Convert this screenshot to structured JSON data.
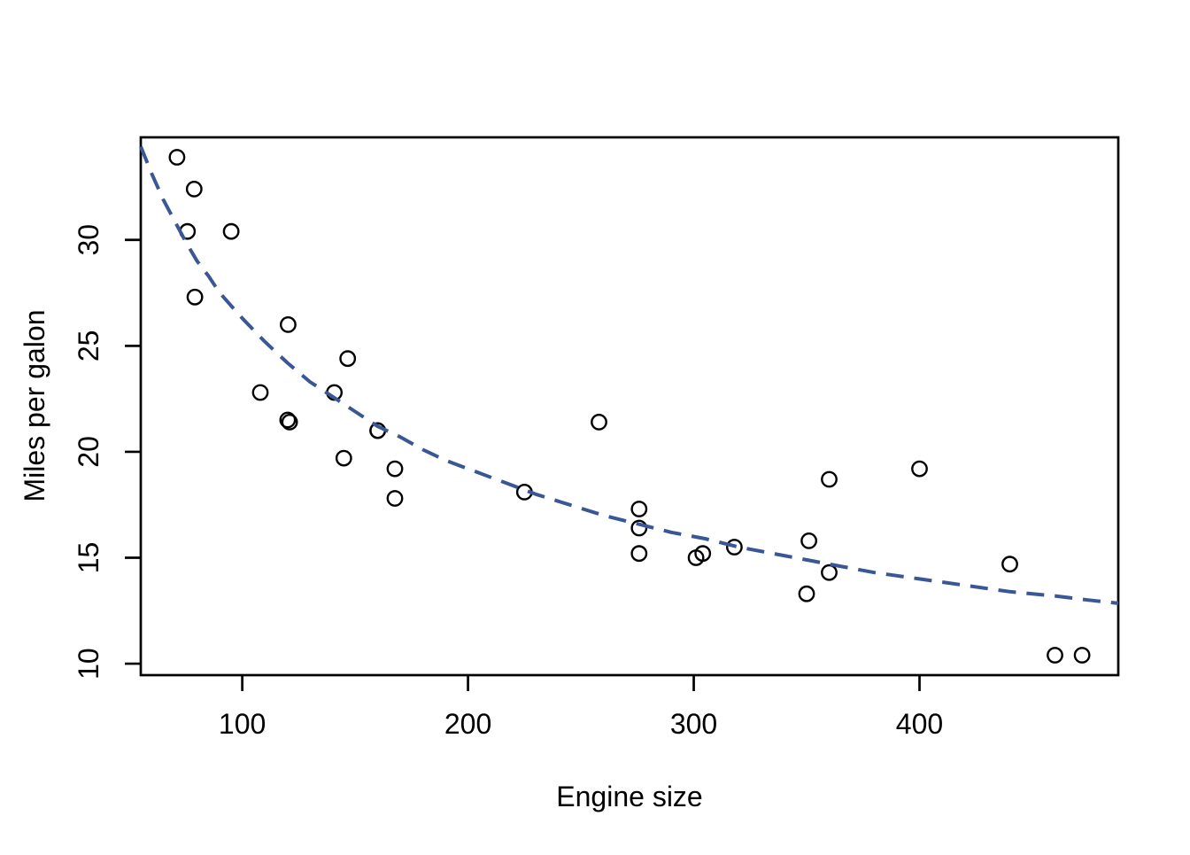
{
  "figure": {
    "background": "#ffffff"
  },
  "chart_data": {
    "type": "scatter",
    "title": "",
    "xlabel": "Engine size",
    "ylabel": "Miles per galon",
    "x_ticks": [
      100,
      200,
      300,
      400
    ],
    "y_ticks": [
      10,
      15,
      20,
      25,
      30
    ],
    "xlim": [
      55.05,
      488.05
    ],
    "ylim": [
      9.46,
      34.84
    ],
    "grid": false,
    "legend": "none",
    "point_style": {
      "shape": "open-circle",
      "color": "#000000",
      "radius": 8.2,
      "stroke_width": 2.4
    },
    "points": [
      [
        160,
        21.0
      ],
      [
        160,
        21.0
      ],
      [
        108,
        22.8
      ],
      [
        258,
        21.4
      ],
      [
        360,
        18.7
      ],
      [
        225,
        18.1
      ],
      [
        360,
        14.3
      ],
      [
        146.7,
        24.4
      ],
      [
        140.8,
        22.8
      ],
      [
        167.6,
        19.2
      ],
      [
        167.6,
        17.8
      ],
      [
        275.8,
        16.4
      ],
      [
        275.8,
        17.3
      ],
      [
        275.8,
        15.2
      ],
      [
        472,
        10.4
      ],
      [
        460,
        10.4
      ],
      [
        440,
        14.7
      ],
      [
        78.7,
        32.4
      ],
      [
        75.7,
        30.4
      ],
      [
        71.1,
        33.9
      ],
      [
        120.1,
        21.5
      ],
      [
        318,
        15.5
      ],
      [
        304,
        15.2
      ],
      [
        350,
        13.3
      ],
      [
        400,
        19.2
      ],
      [
        79,
        27.3
      ],
      [
        120.3,
        26.0
      ],
      [
        95.1,
        30.4
      ],
      [
        351,
        15.8
      ],
      [
        145,
        19.7
      ],
      [
        301,
        15.0
      ],
      [
        121,
        21.4
      ]
    ],
    "trend": {
      "line_style": "dashed",
      "color": "#3A5795",
      "width": 4,
      "dash": [
        20,
        12
      ],
      "samples": [
        [
          55.05,
          34.4
        ],
        [
          60,
          33.1
        ],
        [
          65,
          31.9
        ],
        [
          70,
          30.9
        ],
        [
          75,
          29.9
        ],
        [
          80,
          29.0
        ],
        [
          85,
          28.3
        ],
        [
          90,
          27.5
        ],
        [
          95,
          26.9
        ],
        [
          100,
          26.3
        ],
        [
          110,
          25.2
        ],
        [
          120,
          24.2
        ],
        [
          130,
          23.3
        ],
        [
          140,
          22.6
        ],
        [
          150,
          21.9
        ],
        [
          160,
          21.2
        ],
        [
          170,
          20.7
        ],
        [
          180,
          20.1
        ],
        [
          190,
          19.6
        ],
        [
          200,
          19.2
        ],
        [
          215,
          18.6
        ],
        [
          230,
          18.0
        ],
        [
          245,
          17.5
        ],
        [
          260,
          17.0
        ],
        [
          275,
          16.6
        ],
        [
          290,
          16.2
        ],
        [
          305,
          15.9
        ],
        [
          320,
          15.5
        ],
        [
          335,
          15.2
        ],
        [
          350,
          14.9
        ],
        [
          365,
          14.6
        ],
        [
          380,
          14.3
        ],
        [
          400,
          14.0
        ],
        [
          420,
          13.7
        ],
        [
          440,
          13.4
        ],
        [
          460,
          13.2
        ],
        [
          475,
          13.0
        ],
        [
          488.05,
          12.85
        ]
      ]
    },
    "axis_style": {
      "box_color": "#000000",
      "box_width": 2.7,
      "tick_length": 18,
      "tick_font_size": 32,
      "label_font_size": 32
    }
  }
}
